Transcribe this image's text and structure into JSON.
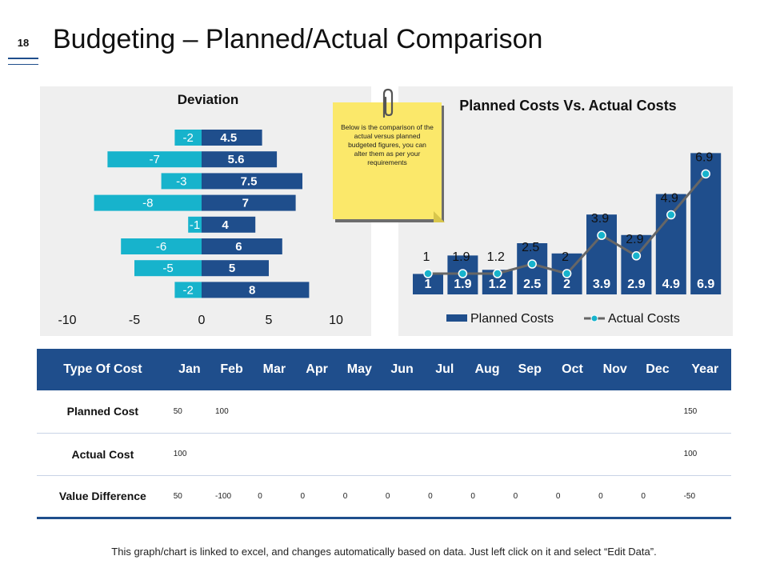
{
  "slide": {
    "number": "18",
    "title": "Budgeting – Planned/Actual Comparison",
    "footer": "This graph/chart is linked to excel, and changes automatically  based on data. Just left click on it and select “Edit Data”."
  },
  "note": {
    "text": "Below is the comparison of the actual versus planned budgeted figures, you can alter them as per your requirements"
  },
  "colors": {
    "dark_blue": "#1f4e8c",
    "light_blue": "#17b3cc",
    "line_gray": "#666666",
    "panel": "#efefef"
  },
  "chart_data": [
    {
      "type": "bar",
      "orientation": "horizontal",
      "title": "Deviation",
      "series": [
        {
          "name": "Negative",
          "color": "#17b3cc",
          "values": [
            -2,
            -7,
            -3,
            -8,
            -1,
            -6,
            -5,
            -2
          ],
          "labels": [
            "-2",
            "-7",
            "-3",
            "-8",
            "-1",
            "-6",
            "-5",
            "-2"
          ]
        },
        {
          "name": "Positive",
          "color": "#1f4e8c",
          "values": [
            4.5,
            5.6,
            7.5,
            7,
            4,
            6,
            5,
            8
          ],
          "labels": [
            "4.5",
            "5.6",
            "7.5",
            "7",
            "4",
            "6",
            "5",
            "8"
          ]
        }
      ],
      "xlim": [
        -10,
        10
      ],
      "ticks": [
        -10,
        -5,
        0,
        5,
        10
      ],
      "tick_labels": [
        "-10",
        "-5",
        "0",
        "5",
        "10"
      ]
    },
    {
      "type": "bar",
      "title": "Planned Costs Vs. Actual Costs",
      "series": [
        {
          "name": "Planned Costs",
          "kind": "bar",
          "color": "#1f4e8c",
          "values": [
            1,
            1.9,
            1.2,
            2.5,
            2,
            3.9,
            2.9,
            4.9,
            6.9
          ],
          "labels": [
            "1",
            "1.9",
            "1.2",
            "2.5",
            "2",
            "3.9",
            "2.9",
            "4.9",
            "6.9"
          ]
        },
        {
          "name": "Actual Costs",
          "kind": "line",
          "color": "#666666",
          "marker_color": "#17b3cc",
          "values": [
            1,
            1.9,
            1.2,
            2.5,
            2,
            3.9,
            2.9,
            4.9,
            6.9
          ],
          "labels": [
            "1",
            "1.9",
            "1.2",
            "2.5",
            "2",
            "3.9",
            "2.9",
            "4.9",
            "6.9"
          ]
        }
      ],
      "ylim": [
        0,
        7
      ],
      "legend": [
        "Planned Costs",
        "Actual Costs"
      ],
      "legend_position": "bottom"
    }
  ],
  "table": {
    "headers": [
      "Type Of Cost",
      "Jan",
      "Feb",
      "Mar",
      "Apr",
      "May",
      "Jun",
      "Jul",
      "Aug",
      "Sep",
      "Oct",
      "Nov",
      "Dec",
      "Year"
    ],
    "rows": [
      [
        "Planned Cost",
        "50",
        "100",
        "",
        "",
        "",
        "",
        "",
        "",
        "",
        "",
        "",
        "",
        "150"
      ],
      [
        "Actual Cost",
        "100",
        "",
        "",
        "",
        "",
        "",
        "",
        "",
        "",
        "",
        "",
        "",
        "100"
      ],
      [
        "Value Difference",
        "50",
        "-100",
        "0",
        "0",
        "0",
        "0",
        "0",
        "0",
        "0",
        "0",
        "0",
        "0",
        "-50"
      ]
    ]
  }
}
